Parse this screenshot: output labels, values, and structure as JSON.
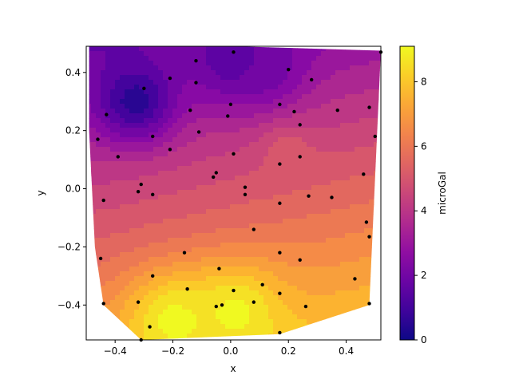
{
  "chart_data": {
    "type": "contour",
    "xlabel": "x",
    "ylabel": "y",
    "colorbar_label": "microGal",
    "colormap": "plasma",
    "xlim": [
      -0.5,
      0.52
    ],
    "ylim": [
      -0.52,
      0.49
    ],
    "color_range": [
      0,
      9.1
    ],
    "x_ticks": [
      -0.4,
      -0.2,
      0.0,
      0.2,
      0.4
    ],
    "x_tick_labels": [
      "−0.4",
      "−0.2",
      "0.0",
      "0.2",
      "0.4"
    ],
    "y_ticks": [
      -0.4,
      -0.2,
      0.0,
      0.2,
      0.4
    ],
    "y_tick_labels": [
      "−0.4",
      "−0.2",
      "0.0",
      "0.2",
      "0.4"
    ],
    "colorbar_ticks": [
      0,
      2,
      4,
      6,
      8
    ],
    "colorbar_tick_labels": [
      "0",
      "2",
      "4",
      "6",
      "8"
    ],
    "marker_color": "#000000",
    "hull": [
      [
        -0.49,
        0.49
      ],
      [
        0.01,
        0.49
      ],
      [
        0.52,
        0.475
      ],
      [
        0.48,
        -0.4
      ],
      [
        0.17,
        -0.5
      ],
      [
        -0.31,
        -0.52
      ],
      [
        -0.44,
        -0.4
      ],
      [
        -0.47,
        -0.2
      ],
      [
        -0.49,
        0.2
      ]
    ],
    "points": [
      {
        "x": 0.01,
        "y": 0.47
      },
      {
        "x": 0.52,
        "y": 0.47
      },
      {
        "x": -0.12,
        "y": 0.44
      },
      {
        "x": 0.2,
        "y": 0.41
      },
      {
        "x": -0.21,
        "y": 0.38
      },
      {
        "x": 0.28,
        "y": 0.375
      },
      {
        "x": -0.12,
        "y": 0.365
      },
      {
        "x": -0.3,
        "y": 0.345
      },
      {
        "x": 0.0,
        "y": 0.29
      },
      {
        "x": 0.17,
        "y": 0.29
      },
      {
        "x": 0.48,
        "y": 0.28
      },
      {
        "x": -0.14,
        "y": 0.27
      },
      {
        "x": 0.37,
        "y": 0.27
      },
      {
        "x": 0.22,
        "y": 0.265
      },
      {
        "x": -0.43,
        "y": 0.255
      },
      {
        "x": -0.01,
        "y": 0.25
      },
      {
        "x": 0.24,
        "y": 0.22
      },
      {
        "x": -0.11,
        "y": 0.195
      },
      {
        "x": 0.5,
        "y": 0.18
      },
      {
        "x": -0.27,
        "y": 0.18
      },
      {
        "x": -0.46,
        "y": 0.17
      },
      {
        "x": -0.21,
        "y": 0.135
      },
      {
        "x": 0.01,
        "y": 0.12
      },
      {
        "x": 0.24,
        "y": 0.11
      },
      {
        "x": -0.39,
        "y": 0.11
      },
      {
        "x": 0.17,
        "y": 0.085
      },
      {
        "x": -0.05,
        "y": 0.055
      },
      {
        "x": 0.46,
        "y": 0.05
      },
      {
        "x": -0.06,
        "y": 0.04
      },
      {
        "x": -0.31,
        "y": 0.015
      },
      {
        "x": 0.05,
        "y": 0.005
      },
      {
        "x": -0.32,
        "y": -0.01
      },
      {
        "x": -0.27,
        "y": -0.02
      },
      {
        "x": 0.05,
        "y": -0.02
      },
      {
        "x": 0.27,
        "y": -0.025
      },
      {
        "x": 0.35,
        "y": -0.03
      },
      {
        "x": -0.44,
        "y": -0.04
      },
      {
        "x": 0.17,
        "y": -0.05
      },
      {
        "x": 0.47,
        "y": -0.115
      },
      {
        "x": 0.08,
        "y": -0.14
      },
      {
        "x": 0.48,
        "y": -0.165
      },
      {
        "x": 0.17,
        "y": -0.22
      },
      {
        "x": -0.16,
        "y": -0.22
      },
      {
        "x": 0.24,
        "y": -0.245
      },
      {
        "x": -0.45,
        "y": -0.24
      },
      {
        "x": -0.04,
        "y": -0.275
      },
      {
        "x": -0.27,
        "y": -0.3
      },
      {
        "x": 0.43,
        "y": -0.31
      },
      {
        "x": 0.11,
        "y": -0.33
      },
      {
        "x": -0.15,
        "y": -0.345
      },
      {
        "x": 0.01,
        "y": -0.35
      },
      {
        "x": 0.17,
        "y": -0.36
      },
      {
        "x": -0.32,
        "y": -0.39
      },
      {
        "x": 0.08,
        "y": -0.39
      },
      {
        "x": 0.48,
        "y": -0.395
      },
      {
        "x": -0.44,
        "y": -0.395
      },
      {
        "x": -0.03,
        "y": -0.4
      },
      {
        "x": -0.05,
        "y": -0.405
      },
      {
        "x": 0.26,
        "y": -0.405
      },
      {
        "x": -0.28,
        "y": -0.475
      },
      {
        "x": 0.17,
        "y": -0.495
      },
      {
        "x": -0.31,
        "y": -0.52
      }
    ],
    "field_features": [
      {
        "kind": "low",
        "x": -0.33,
        "y": 0.3,
        "value": 0.3
      },
      {
        "kind": "low",
        "x": 0.0,
        "y": 0.44,
        "value": 1.4
      },
      {
        "kind": "low",
        "x": 0.12,
        "y": 0.42,
        "value": 1.9
      },
      {
        "kind": "local-high",
        "x": 0.2,
        "y": 0.12,
        "value": 5.2
      },
      {
        "kind": "high",
        "x": -0.2,
        "y": -0.45,
        "value": 9.1
      },
      {
        "kind": "high",
        "x": 0.02,
        "y": -0.42,
        "value": 9.0
      }
    ]
  }
}
